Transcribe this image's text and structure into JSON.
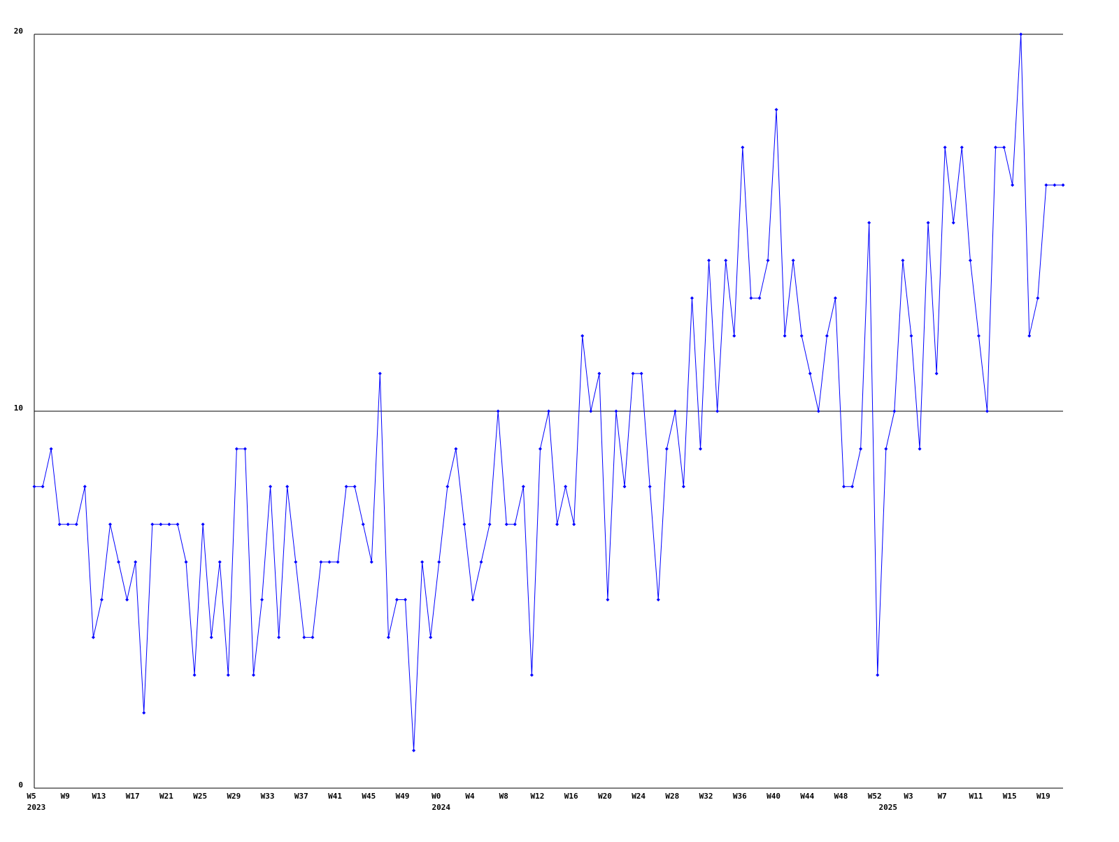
{
  "chart_data": {
    "type": "line",
    "categories": [
      "W5",
      null,
      null,
      null,
      "W9",
      null,
      null,
      null,
      "W13",
      null,
      null,
      null,
      "W17",
      null,
      null,
      null,
      "W21",
      null,
      null,
      null,
      "W25",
      null,
      null,
      null,
      "W29",
      null,
      null,
      null,
      "W33",
      null,
      null,
      null,
      "W37",
      null,
      null,
      null,
      "W41",
      null,
      null,
      null,
      "W45",
      null,
      null,
      null,
      "W49",
      null,
      null,
      null,
      "W0",
      null,
      null,
      null,
      "W4",
      null,
      null,
      null,
      "W8",
      null,
      null,
      null,
      "W12",
      null,
      null,
      null,
      "W16",
      null,
      null,
      null,
      "W20",
      null,
      null,
      null,
      "W24",
      null,
      null,
      null,
      "W28",
      null,
      null,
      null,
      "W32",
      null,
      null,
      null,
      "W36",
      null,
      null,
      null,
      "W40",
      null,
      null,
      null,
      "W44",
      null,
      null,
      null,
      "W48",
      null,
      null,
      null,
      "W52",
      null,
      null,
      null,
      "W3",
      null,
      null,
      null,
      "W7",
      null,
      null,
      null,
      "W11",
      null,
      null,
      null,
      "W15",
      null,
      null,
      null,
      "W19",
      null,
      null
    ],
    "year_labels": [
      "2023",
      null,
      null,
      null,
      null,
      null,
      null,
      null,
      null,
      null,
      null,
      null,
      null,
      null,
      null,
      null,
      null,
      null,
      null,
      null,
      null,
      null,
      null,
      null,
      null,
      null,
      null,
      null,
      null,
      null,
      null,
      null,
      null,
      null,
      null,
      null,
      null,
      null,
      null,
      null,
      null,
      null,
      null,
      null,
      null,
      null,
      null,
      null,
      "2024",
      null,
      null,
      null,
      null,
      null,
      null,
      null,
      null,
      null,
      null,
      null,
      null,
      null,
      null,
      null,
      null,
      null,
      null,
      null,
      null,
      null,
      null,
      null,
      null,
      null,
      null,
      null,
      null,
      null,
      null,
      null,
      null,
      null,
      null,
      null,
      null,
      null,
      null,
      null,
      null,
      null,
      null,
      null,
      null,
      null,
      null,
      null,
      null,
      null,
      null,
      null,
      null,
      "2025",
      null,
      null,
      null,
      null,
      null,
      null,
      null,
      null,
      null,
      null,
      null,
      null,
      null,
      null,
      null,
      null,
      null,
      null,
      null,
      null,
      null
    ],
    "series": [
      {
        "color": "#0000ff",
        "values": [
          8,
          8,
          9,
          7,
          7,
          7,
          8,
          4,
          5,
          7,
          6,
          5,
          6,
          2,
          7,
          7,
          7,
          7,
          6,
          3,
          7,
          4,
          6,
          3,
          9,
          9,
          3,
          5,
          8,
          4,
          8,
          6,
          4,
          4,
          6,
          6,
          6,
          8,
          8,
          7,
          6,
          11,
          4,
          5,
          5,
          1,
          6,
          4,
          6,
          8,
          9,
          7,
          5,
          6,
          7,
          10,
          7,
          7,
          8,
          3,
          9,
          10,
          7,
          8,
          7,
          12,
          10,
          11,
          5,
          10,
          8,
          11,
          11,
          8,
          5,
          9,
          10,
          8,
          13,
          9,
          14,
          10,
          14,
          12,
          17,
          13,
          13,
          14,
          18,
          12,
          14,
          12,
          11,
          10,
          12,
          13,
          8,
          8,
          9,
          15,
          3,
          9,
          10,
          14,
          12,
          9,
          15,
          11,
          17,
          15,
          17,
          14,
          12,
          10,
          17,
          17,
          16,
          20,
          12,
          13,
          16,
          16,
          16
        ]
      }
    ],
    "ylim": [
      0,
      20
    ],
    "yticks": [
      0,
      10,
      20
    ],
    "grid": true
  }
}
